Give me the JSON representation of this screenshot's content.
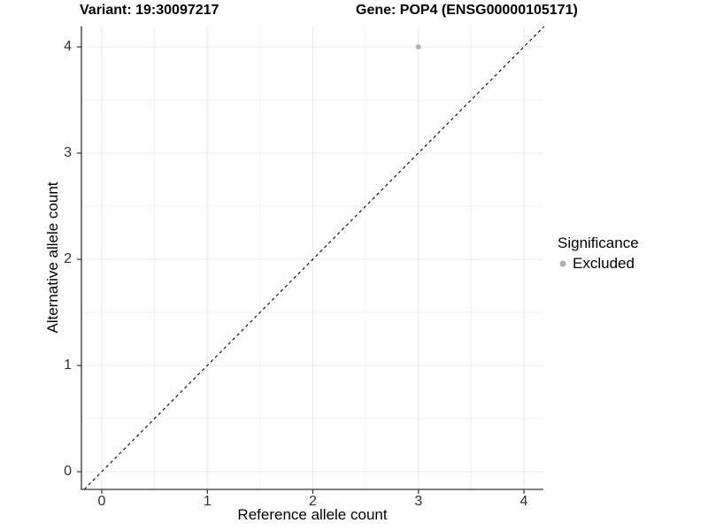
{
  "chart_data": {
    "type": "scatter",
    "title_left": "Variant: 19:30097217",
    "title_right": "Gene: POP4 (ENSG00000105171)",
    "xlabel": "Reference allele count",
    "ylabel": "Alternative allele count",
    "xlim": [
      -0.2,
      4.2
    ],
    "ylim": [
      -0.2,
      4.2
    ],
    "x_ticks": [
      "0",
      "1",
      "2",
      "3",
      "4"
    ],
    "y_ticks": [
      "0",
      "1",
      "2",
      "3",
      "4"
    ],
    "grid": "major at integers, minor at 0.5 intervals",
    "legend_position": "right",
    "legend_title": "Significance",
    "reference_line": {
      "slope": 1,
      "intercept": 0,
      "style": "dashed",
      "color": "#000000"
    },
    "series": [
      {
        "name": "Excluded",
        "color": "#b3b3b3",
        "points": [
          {
            "x": 3,
            "y": 4
          }
        ]
      }
    ]
  },
  "colors": {
    "grid_major": "#e8e8e8",
    "grid_minor": "#f2f2f2",
    "axis_line": "#333333",
    "excluded_point": "#b3b3b3"
  }
}
